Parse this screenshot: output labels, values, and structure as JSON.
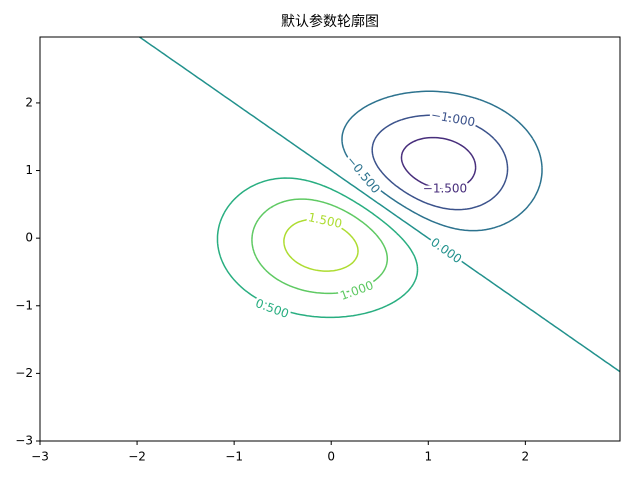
{
  "chart_data": {
    "type": "contour",
    "title": "默认参数轮廓图",
    "levels": [
      -1.5,
      -1.0,
      -0.5,
      0.0,
      0.5,
      1.0,
      1.5
    ],
    "value_labels": [
      "−1.500",
      "−1.000",
      "−0.500",
      "0.000",
      "0.500",
      "1.000",
      "1.500"
    ],
    "colors": [
      "#472d7b",
      "#3b528b",
      "#2c728e",
      "#21918c",
      "#28ae80",
      "#5ec962",
      "#addc30"
    ],
    "xlim": [
      -3,
      2.975
    ],
    "ylim": [
      -3,
      2.975
    ],
    "xticks": [
      {
        "value": -3,
        "label": "−3"
      },
      {
        "value": -2,
        "label": "−2"
      },
      {
        "value": -1,
        "label": "−1"
      },
      0,
      1,
      2
    ],
    "yticks": [
      {
        "value": -3,
        "label": "−3"
      },
      {
        "value": -2,
        "label": "−2"
      },
      {
        "value": -1,
        "label": "−1"
      },
      0,
      1,
      2
    ]
  }
}
